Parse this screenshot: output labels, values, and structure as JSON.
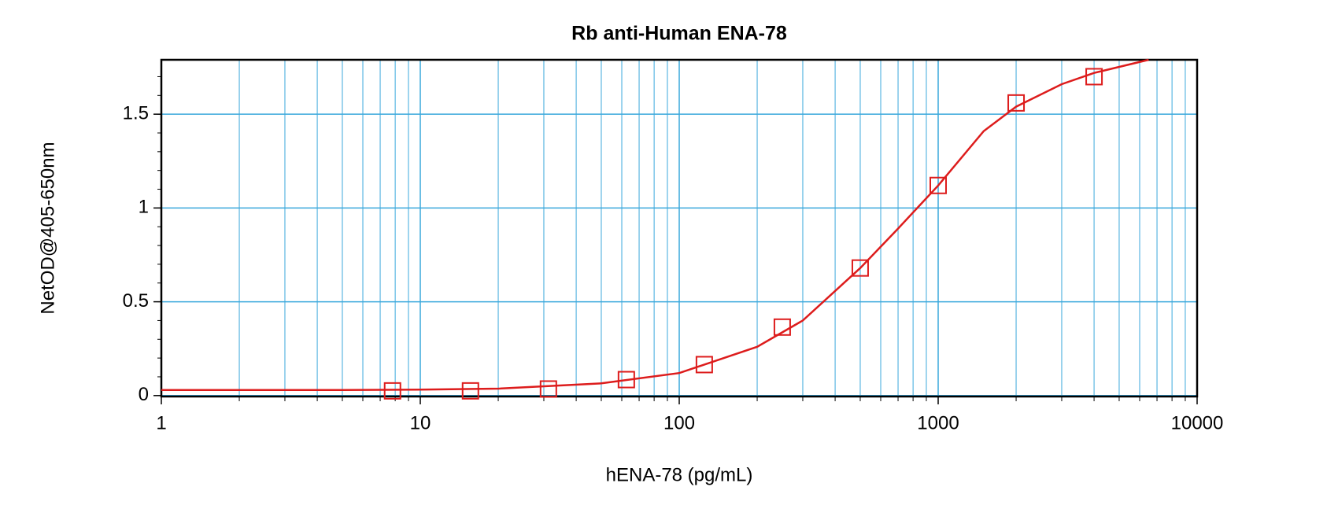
{
  "chart_data": {
    "type": "scatter-fit",
    "title": "Rb anti-Human ENA-78",
    "x_label": "hENA-78 (pg/mL)",
    "y_label": "NetOD@405-650nm",
    "log_x": true,
    "grid": true,
    "minor_grid": true,
    "xlim": [
      1,
      10000
    ],
    "xticks": [
      1,
      10,
      100,
      1000,
      10000
    ],
    "ylim": [
      -0.005,
      1.79
    ],
    "yticks": [
      0,
      0.5,
      1,
      1.5
    ],
    "series": [
      {
        "kind": "points",
        "color": "#dd1c1c",
        "x": [
          7.8125,
          15.625,
          31.25,
          62.5,
          125,
          250,
          500,
          1000,
          2000,
          4000
        ],
        "values": [
          0.025,
          0.025,
          0.035,
          0.085,
          0.165,
          0.365,
          0.68,
          1.12,
          1.56,
          1.7
        ]
      },
      {
        "kind": "line",
        "color": "#dd1c1c",
        "x": [
          1,
          2,
          5,
          10,
          20,
          50,
          100,
          200,
          300,
          500,
          700,
          1000,
          1500,
          2000,
          3000,
          4000,
          6500
        ],
        "values": [
          0.03,
          0.03,
          0.03,
          0.032,
          0.037,
          0.065,
          0.12,
          0.26,
          0.4,
          0.68,
          0.89,
          1.12,
          1.41,
          1.54,
          1.66,
          1.72,
          1.79
        ]
      }
    ]
  }
}
